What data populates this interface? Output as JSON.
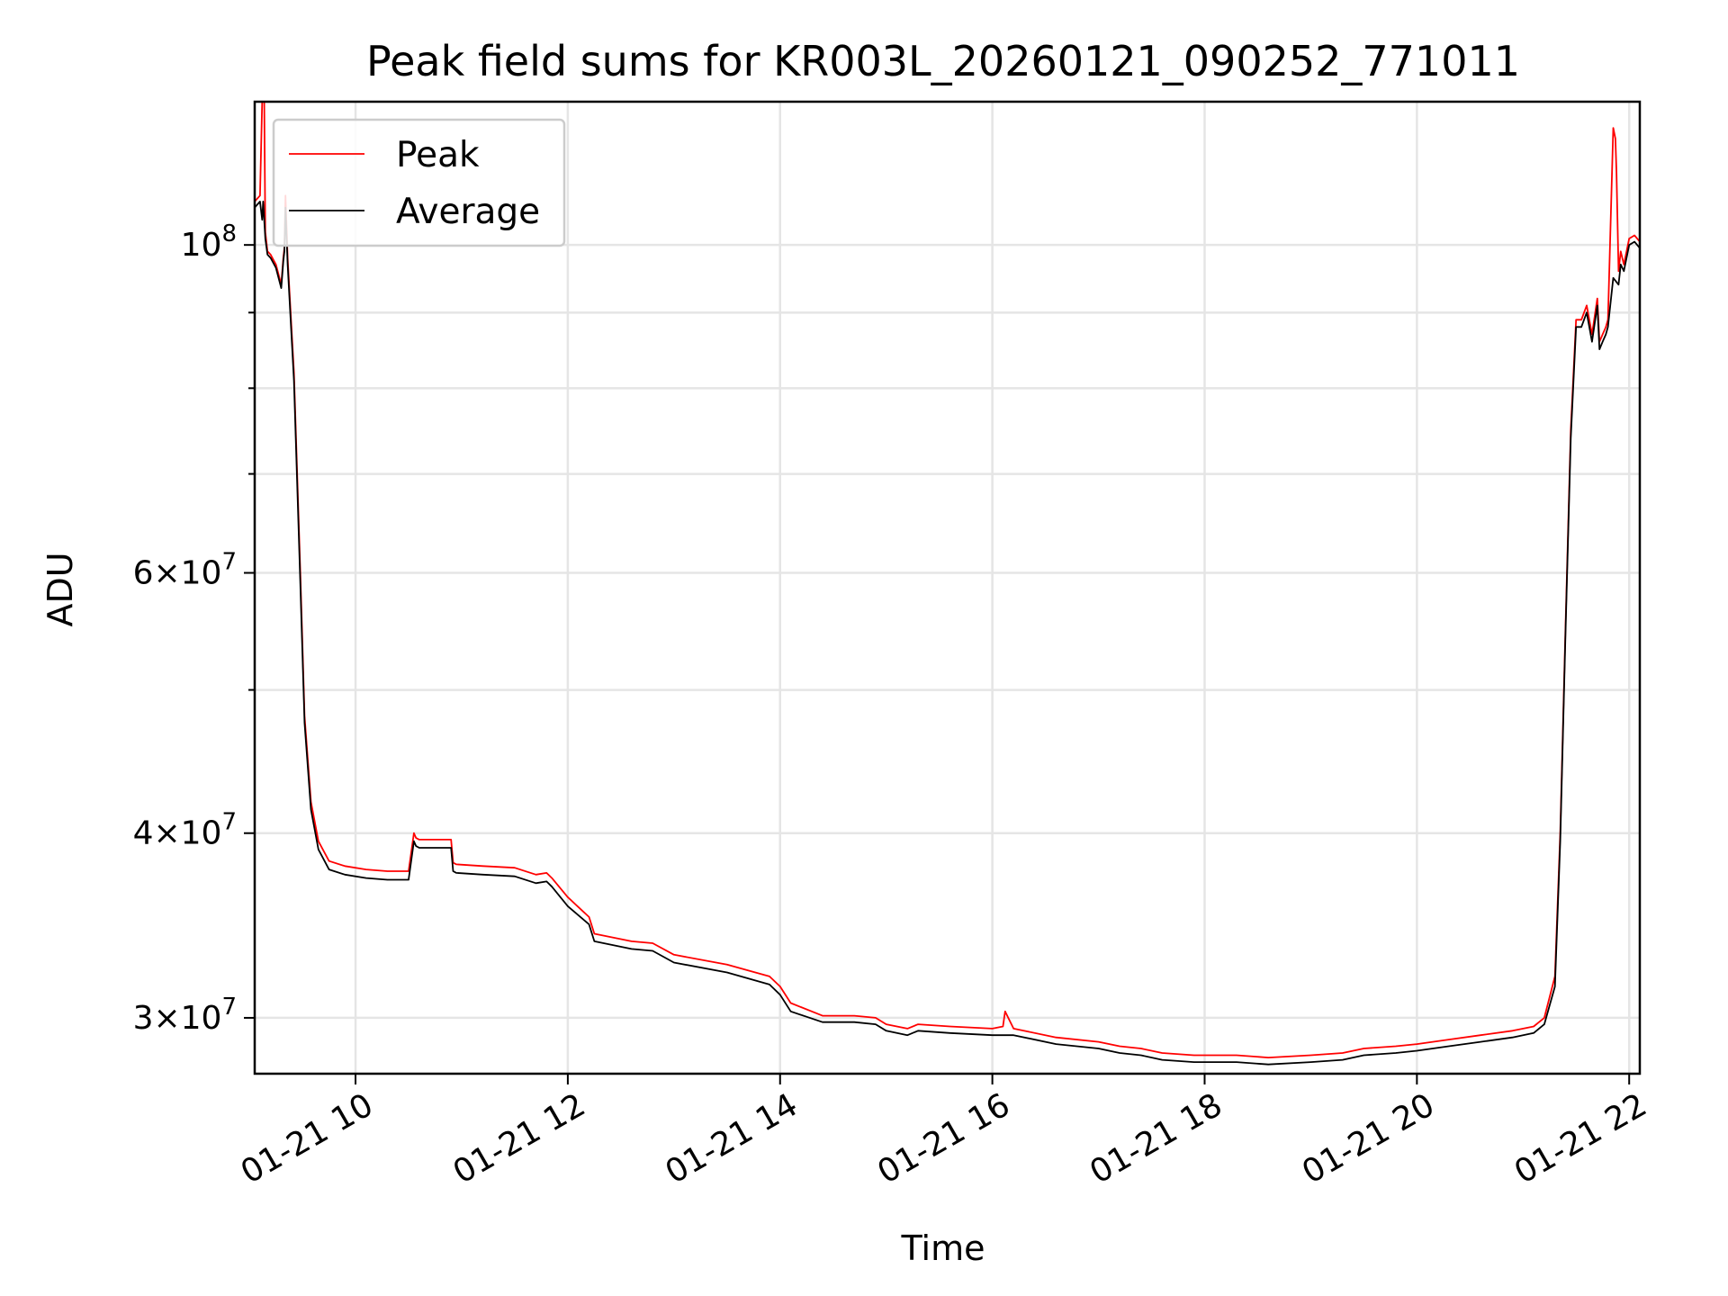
{
  "chart_data": {
    "type": "line",
    "title": "Peak field sums for KR003L_20260121_090252_771011",
    "xlabel": "Time",
    "ylabel": "ADU",
    "x_unit": "hours of day on 2026-01-21",
    "xlim": [
      9.05,
      22.1
    ],
    "ylim": [
      27500000,
      125000000
    ],
    "yscale": "log",
    "grid": true,
    "legend_position": "top-left",
    "x_ticks": [
      {
        "value": 10,
        "label": "01-21 10"
      },
      {
        "value": 12,
        "label": "01-21 12"
      },
      {
        "value": 14,
        "label": "01-21 14"
      },
      {
        "value": 16,
        "label": "01-21 16"
      },
      {
        "value": 18,
        "label": "01-21 18"
      },
      {
        "value": 20,
        "label": "01-21 20"
      },
      {
        "value": 22,
        "label": "01-21 22"
      }
    ],
    "y_ticks": [
      {
        "value": 30000000,
        "mantissa": "3",
        "exponent": "7"
      },
      {
        "value": 40000000,
        "mantissa": "4",
        "exponent": "7"
      },
      {
        "value": 60000000,
        "mantissa": "6",
        "exponent": "7"
      },
      {
        "value": 100000000,
        "mantissa": "",
        "exponent": "8"
      }
    ],
    "y_minor_ticks": [
      50000000,
      70000000,
      80000000,
      90000000
    ],
    "series": [
      {
        "name": "Peak",
        "color": "#ff0000",
        "x": [
          9.05,
          9.1,
          9.12,
          9.13,
          9.14,
          9.15,
          9.17,
          9.2,
          9.25,
          9.3,
          9.32,
          9.33,
          9.34,
          9.36,
          9.42,
          9.48,
          9.52,
          9.58,
          9.65,
          9.75,
          9.9,
          10.1,
          10.3,
          10.5,
          10.55,
          10.57,
          10.6,
          10.9,
          10.92,
          10.95,
          11.2,
          11.5,
          11.7,
          11.8,
          11.85,
          12.0,
          12.2,
          12.25,
          12.6,
          12.8,
          13.0,
          13.5,
          13.9,
          14.0,
          14.1,
          14.4,
          14.7,
          14.9,
          15.0,
          15.2,
          15.3,
          15.6,
          16.0,
          16.1,
          16.12,
          16.2,
          16.6,
          17.0,
          17.2,
          17.4,
          17.6,
          17.9,
          18.0,
          18.3,
          18.6,
          19.0,
          19.3,
          19.5,
          19.8,
          20.0,
          20.3,
          20.6,
          20.9,
          21.1,
          21.2,
          21.3,
          21.35,
          21.4,
          21.45,
          21.5,
          21.55,
          21.6,
          21.65,
          21.7,
          21.72,
          21.75,
          21.78,
          21.8,
          21.85,
          21.87,
          21.88,
          21.9,
          21.92,
          21.95,
          22.0,
          22.05,
          22.1
        ],
        "y": [
          107000000,
          108000000,
          125000000,
          125000000,
          125000000,
          102000000,
          99000000,
          98500000,
          97000000,
          94000000,
          98000000,
          99500000,
          108000000,
          98000000,
          82000000,
          60000000,
          48000000,
          42000000,
          39500000,
          38300000,
          38000000,
          37800000,
          37700000,
          37700000,
          40000000,
          39700000,
          39600000,
          39600000,
          38200000,
          38100000,
          38000000,
          37900000,
          37500000,
          37600000,
          37300000,
          36200000,
          35100000,
          34200000,
          33800000,
          33700000,
          33100000,
          32600000,
          32000000,
          31500000,
          30700000,
          30100000,
          30100000,
          30000000,
          29700000,
          29500000,
          29700000,
          29600000,
          29500000,
          29600000,
          30300000,
          29500000,
          29100000,
          28900000,
          28700000,
          28600000,
          28400000,
          28300000,
          28300000,
          28300000,
          28200000,
          28300000,
          28400000,
          28600000,
          28700000,
          28800000,
          29000000,
          29200000,
          29400000,
          29600000,
          30000000,
          32000000,
          40000000,
          55000000,
          75000000,
          89000000,
          89000000,
          91000000,
          87000000,
          92000000,
          86000000,
          87000000,
          88000000,
          89000000,
          120000000,
          118000000,
          112000000,
          96000000,
          99000000,
          97000000,
          101000000,
          101500000,
          100500000
        ]
      },
      {
        "name": "Average",
        "color": "#000000",
        "x": [
          9.05,
          9.1,
          9.12,
          9.13,
          9.15,
          9.17,
          9.2,
          9.25,
          9.3,
          9.32,
          9.33,
          9.34,
          9.36,
          9.42,
          9.48,
          9.52,
          9.58,
          9.65,
          9.75,
          9.9,
          10.1,
          10.3,
          10.5,
          10.55,
          10.57,
          10.6,
          10.9,
          10.92,
          10.95,
          11.2,
          11.5,
          11.7,
          11.8,
          11.85,
          12.0,
          12.2,
          12.25,
          12.6,
          12.8,
          13.0,
          13.5,
          13.9,
          14.0,
          14.1,
          14.4,
          14.7,
          14.9,
          15.0,
          15.2,
          15.3,
          15.6,
          16.0,
          16.2,
          16.6,
          17.0,
          17.2,
          17.4,
          17.6,
          17.9,
          18.0,
          18.3,
          18.6,
          19.0,
          19.3,
          19.5,
          19.8,
          20.0,
          20.3,
          20.6,
          20.9,
          21.1,
          21.2,
          21.3,
          21.35,
          21.4,
          21.45,
          21.5,
          21.55,
          21.6,
          21.65,
          21.7,
          21.72,
          21.75,
          21.78,
          21.8,
          21.85,
          21.9,
          21.92,
          21.95,
          22.0,
          22.05,
          22.1
        ],
        "y": [
          106000000,
          107000000,
          104000000,
          107000000,
          101000000,
          98500000,
          98000000,
          96500000,
          93500000,
          97500000,
          99000000,
          106000000,
          97000000,
          81000000,
          59000000,
          47500000,
          41500000,
          39000000,
          37800000,
          37500000,
          37300000,
          37200000,
          37200000,
          39500000,
          39200000,
          39100000,
          39100000,
          37700000,
          37600000,
          37500000,
          37400000,
          37000000,
          37100000,
          36800000,
          35700000,
          34700000,
          33800000,
          33400000,
          33300000,
          32700000,
          32200000,
          31600000,
          31100000,
          30300000,
          29800000,
          29800000,
          29700000,
          29400000,
          29200000,
          29400000,
          29300000,
          29200000,
          29200000,
          28800000,
          28600000,
          28400000,
          28300000,
          28100000,
          28000000,
          28000000,
          28000000,
          27900000,
          28000000,
          28100000,
          28300000,
          28400000,
          28500000,
          28700000,
          28900000,
          29100000,
          29300000,
          29700000,
          31500000,
          39500000,
          54500000,
          74000000,
          88000000,
          88000000,
          90000000,
          86000000,
          91000000,
          85000000,
          86000000,
          87000000,
          88000000,
          95000000,
          94000000,
          97000000,
          96000000,
          100000000,
          100500000,
          99500000
        ]
      }
    ]
  }
}
